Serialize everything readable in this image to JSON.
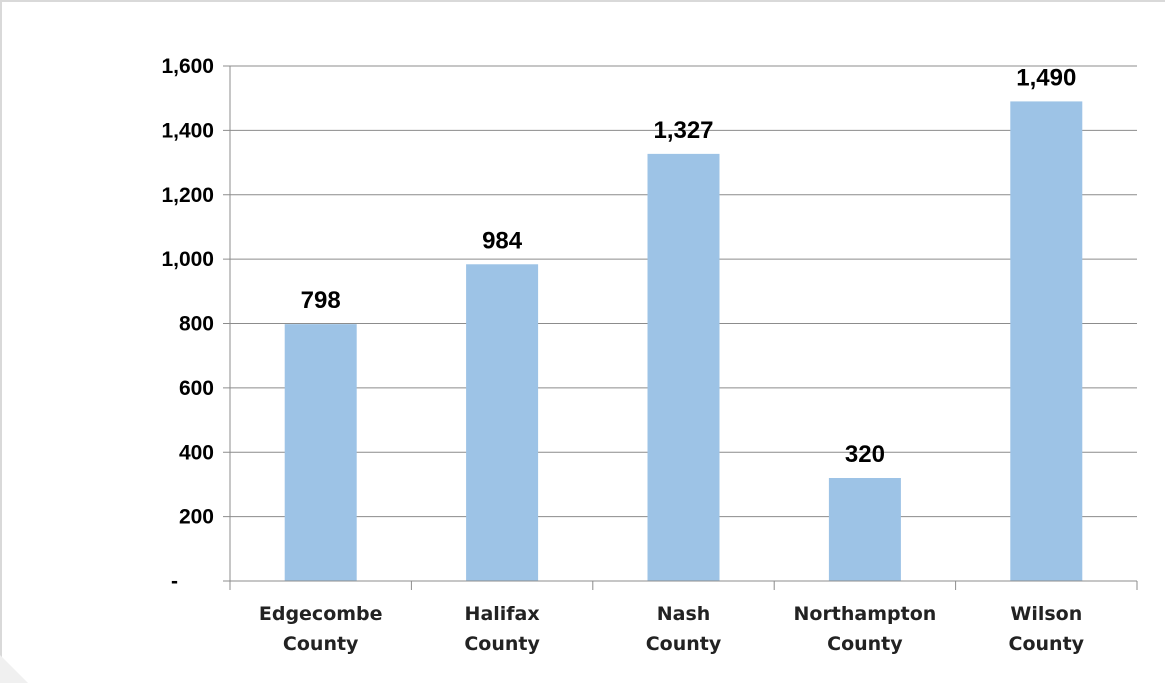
{
  "chart_data": {
    "type": "bar",
    "categories": [
      [
        "Edgecombe",
        "County"
      ],
      [
        "Halifax",
        "County"
      ],
      [
        "Nash",
        "County"
      ],
      [
        "Northampton",
        "County"
      ],
      [
        "Wilson",
        "County"
      ]
    ],
    "values": [
      798,
      984,
      1327,
      320,
      1490
    ],
    "data_labels": [
      "798",
      "984",
      "1,327",
      "320",
      "1,490"
    ],
    "yticks": [
      0,
      200,
      400,
      600,
      800,
      1000,
      1200,
      1400,
      1600
    ],
    "ytick_labels": [
      "-",
      "200",
      "400",
      "600",
      "800",
      "1,000",
      "1,200",
      "1,400",
      "1,600"
    ],
    "ylim": [
      0,
      1600
    ],
    "grid": true,
    "legend": "none",
    "bar_color": "#9dc3e6",
    "gridline_color": "#8c8c8c",
    "title": "",
    "xlabel": "",
    "ylabel": ""
  }
}
